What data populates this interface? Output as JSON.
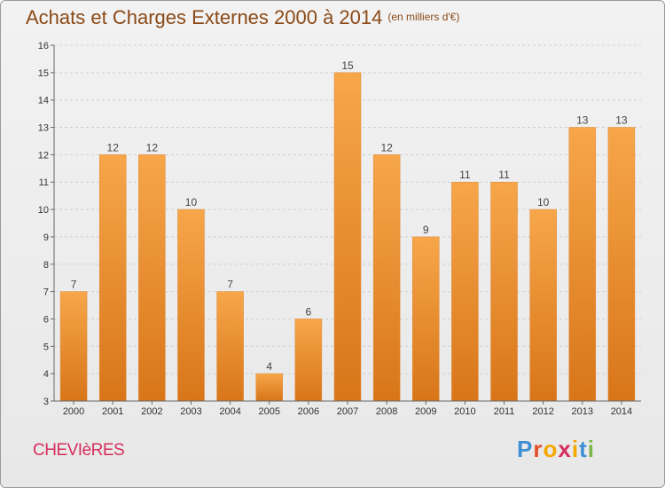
{
  "header": {
    "title": "Achats et Charges Externes 2000 à 2014",
    "subtitle": "(en milliers d'€)"
  },
  "footer": {
    "town": "CHEVIèRES",
    "logo": "Proxiti",
    "logo_colors": [
      "#3f8fd4",
      "#e44d26",
      "#f7a800",
      "#d62e5e",
      "#f7a800",
      "#3f8fd4",
      "#7ab648"
    ]
  },
  "colors": {
    "bar_light": "#f7a64a",
    "bar_dark": "#d87519",
    "title": "#8b4a17",
    "town": "#d62e5e"
  },
  "chart_data": {
    "type": "bar",
    "title": "Achats et Charges Externes 2000 à 2014",
    "subtitle": "(en milliers d'€)",
    "categories": [
      "2000",
      "2001",
      "2002",
      "2003",
      "2004",
      "2005",
      "2006",
      "2007",
      "2008",
      "2009",
      "2010",
      "2011",
      "2012",
      "2013",
      "2014"
    ],
    "values": [
      7,
      12,
      12,
      10,
      7,
      4,
      6,
      15,
      12,
      9,
      11,
      11,
      10,
      13,
      13
    ],
    "data_labels": [
      "7",
      "12",
      "12",
      "10",
      "7",
      "4",
      "6",
      "15",
      "12",
      "9",
      "11",
      "11",
      "10",
      "13",
      "13"
    ],
    "ylim": [
      3,
      16
    ],
    "yticks": [
      3,
      4,
      5,
      6,
      7,
      8,
      9,
      10,
      11,
      12,
      13,
      14,
      15,
      16
    ],
    "grid": true,
    "legend": "none"
  }
}
